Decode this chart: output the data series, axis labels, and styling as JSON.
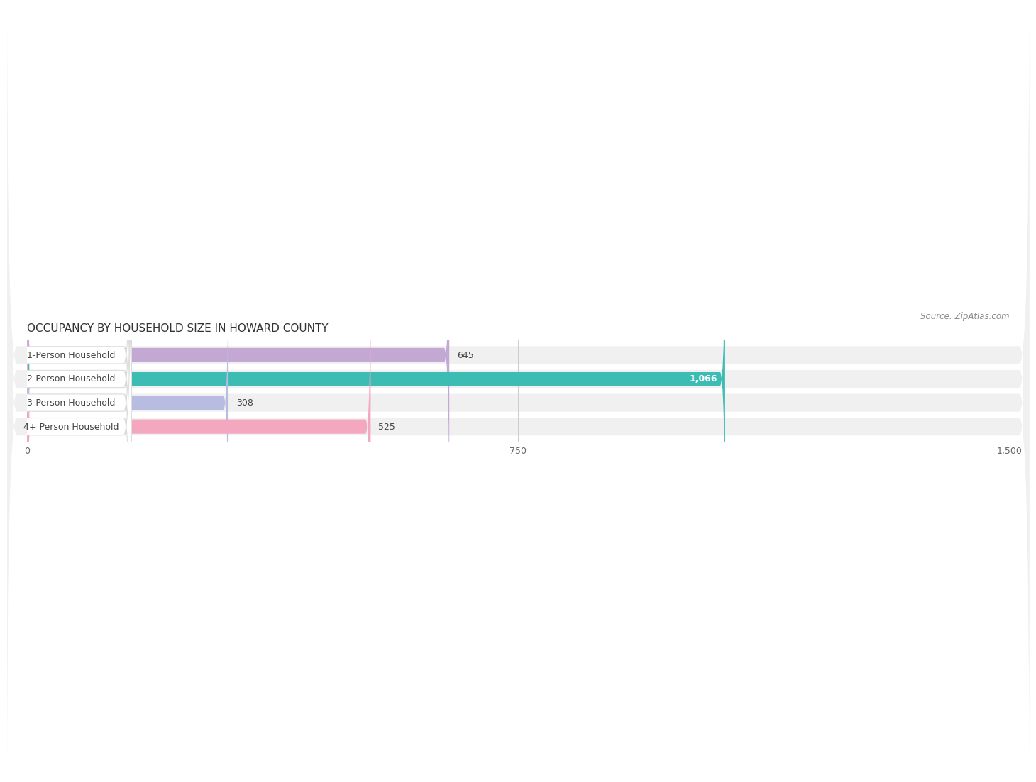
{
  "title": "OCCUPANCY BY HOUSEHOLD SIZE IN HOWARD COUNTY",
  "source": "Source: ZipAtlas.com",
  "categories": [
    "1-Person Household",
    "2-Person Household",
    "3-Person Household",
    "4+ Person Household"
  ],
  "values": [
    645,
    1066,
    308,
    525
  ],
  "bar_colors": [
    "#c4a8d4",
    "#3dbcb4",
    "#b8bce0",
    "#f4a8c0"
  ],
  "label_colors": [
    "#555555",
    "#ffffff",
    "#555555",
    "#555555"
  ],
  "xlim": [
    0,
    1500
  ],
  "xticks": [
    0,
    750,
    1500
  ],
  "title_fontsize": 11,
  "source_fontsize": 8.5,
  "label_fontsize": 9,
  "value_fontsize": 9,
  "background_color": "#ffffff",
  "bar_height": 0.6,
  "row_bg_color": "#f0f0f0"
}
